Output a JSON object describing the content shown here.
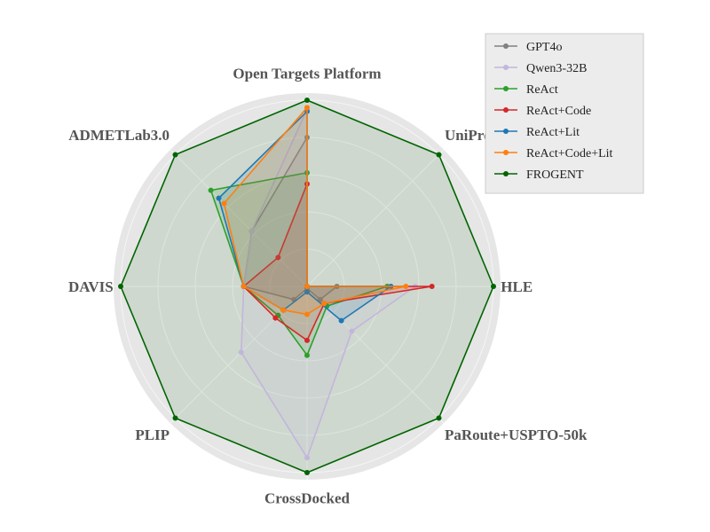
{
  "chart_data": {
    "type": "radar",
    "axes": [
      "Open Targets Platform",
      "UniProt",
      "HLE",
      "PaRoute+USPTO-50k",
      "CrossDocked",
      "PLIP",
      "DAVIS",
      "ADMETLab3.0"
    ],
    "rlim": [
      0,
      1
    ],
    "grid": true,
    "legend_position": "top-right",
    "series": [
      {
        "name": "GPT4o",
        "color": "#808080",
        "values": [
          0.8,
          0.0,
          0.16,
          0.1,
          0.01,
          0.1,
          0.34,
          0.42
        ]
      },
      {
        "name": "Qwen3-32B",
        "color": "#c3b5dc",
        "values": [
          0.95,
          0.0,
          0.58,
          0.34,
          0.92,
          0.5,
          0.34,
          0.42
        ]
      },
      {
        "name": "ReAct",
        "color": "#2ca02c",
        "values": [
          0.61,
          0.0,
          0.43,
          0.15,
          0.37,
          0.22,
          0.34,
          0.73
        ]
      },
      {
        "name": "ReAct+Code",
        "color": "#d62728",
        "values": [
          0.55,
          0.0,
          0.67,
          0.13,
          0.29,
          0.24,
          0.34,
          0.22
        ]
      },
      {
        "name": "ReAct+Lit",
        "color": "#1f77b4",
        "values": [
          0.94,
          0.0,
          0.45,
          0.26,
          0.03,
          0.18,
          0.34,
          0.67
        ]
      },
      {
        "name": "ReAct+Code+Lit",
        "color": "#ff7f0e",
        "values": [
          0.96,
          0.0,
          0.53,
          0.13,
          0.15,
          0.18,
          0.34,
          0.63
        ]
      },
      {
        "name": "FROGENT",
        "color": "#006400",
        "values": [
          1.0,
          1.0,
          1.0,
          1.0,
          1.0,
          1.0,
          1.0,
          1.0
        ]
      }
    ]
  }
}
